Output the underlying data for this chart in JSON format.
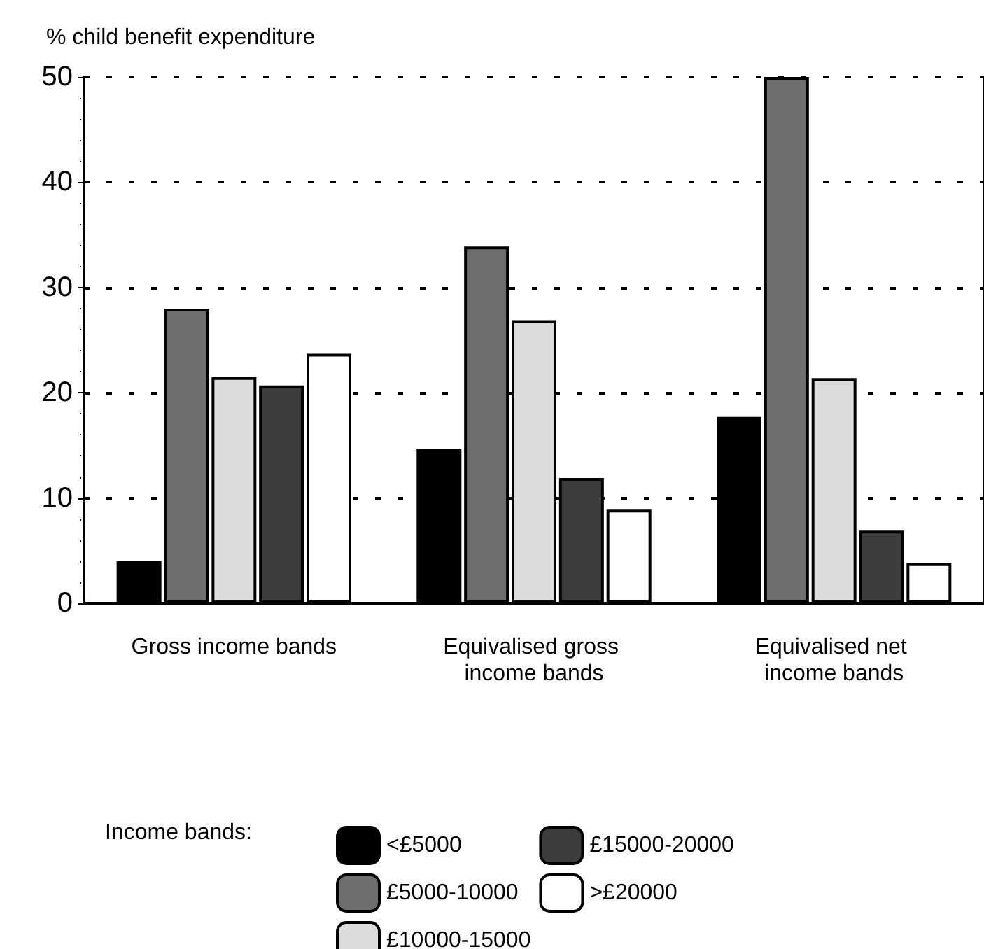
{
  "chart_data": {
    "type": "bar",
    "ylabel": "% child benefit expenditure",
    "categories": [
      "Gross income bands",
      "Equivalised gross income bands",
      "Equivalised net income bands"
    ],
    "series": [
      {
        "name": "<£5000",
        "color": "#000000",
        "values": [
          4,
          14.7,
          17.7
        ]
      },
      {
        "name": "£5000-10000",
        "color": "#6e6e6e",
        "values": [
          28,
          33.9,
          50
        ]
      },
      {
        "name": "£10000-15000",
        "color": "#dcdcdc",
        "values": [
          21.5,
          26.9,
          21.4
        ]
      },
      {
        "name": "£15000-20000",
        "color": "#3c3c3c",
        "values": [
          20.7,
          11.9,
          6.9
        ]
      },
      {
        "name": ">£20000",
        "color": "#ffffff",
        "values": [
          23.7,
          8.9,
          3.8
        ]
      }
    ],
    "legend_title": "Income bands:",
    "ylim": [
      0,
      50
    ],
    "yticks": [
      0,
      10,
      20,
      30,
      40,
      50
    ],
    "grid": "y",
    "legend": "bottom"
  }
}
